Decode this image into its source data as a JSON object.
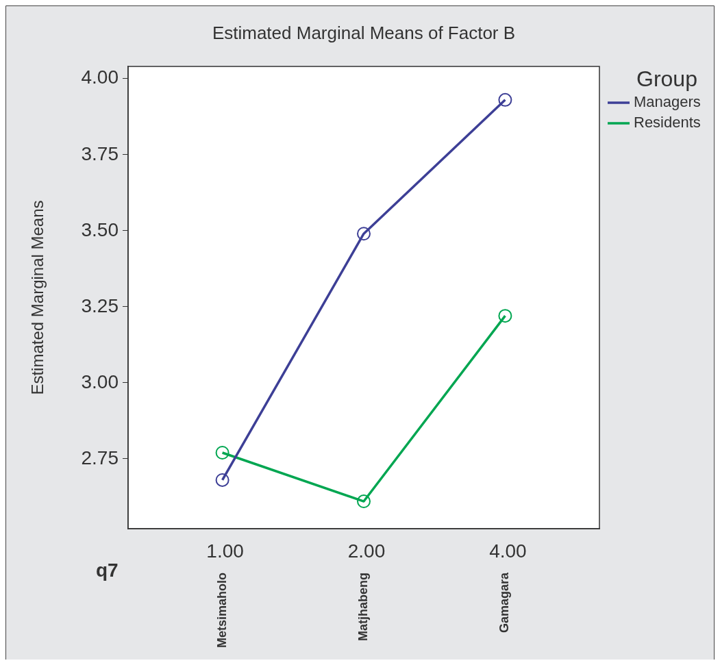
{
  "chart_data": {
    "type": "line",
    "title": "Estimated Marginal Means of Factor B",
    "xlabel": "q7",
    "ylabel": "Estimated Marginal Means",
    "legend_title": "Group",
    "legend": "right",
    "marker": "circle",
    "line_style": "solid",
    "categories": [
      "1.00\nMetsimaholo",
      "2.00\nMatjhabeng",
      "4.00\nGamagara"
    ],
    "ylim": [
      2.52,
      4.04
    ],
    "yticks": [
      {
        "value": 2.75,
        "label": "2.75"
      },
      {
        "value": 3,
        "label": "3.00"
      },
      {
        "value": 3.25,
        "label": "3.25"
      },
      {
        "value": 3.5,
        "label": "3.50"
      },
      {
        "value": 3.75,
        "label": "3.75"
      },
      {
        "value": 4,
        "label": "4.00"
      }
    ],
    "series": [
      {
        "name": "Managers",
        "color": "#3d3f96",
        "values": [
          2.68,
          3.49,
          3.93
        ]
      },
      {
        "name": "Residents",
        "color": "#00a651",
        "values": [
          2.77,
          2.61,
          3.22
        ]
      }
    ]
  }
}
